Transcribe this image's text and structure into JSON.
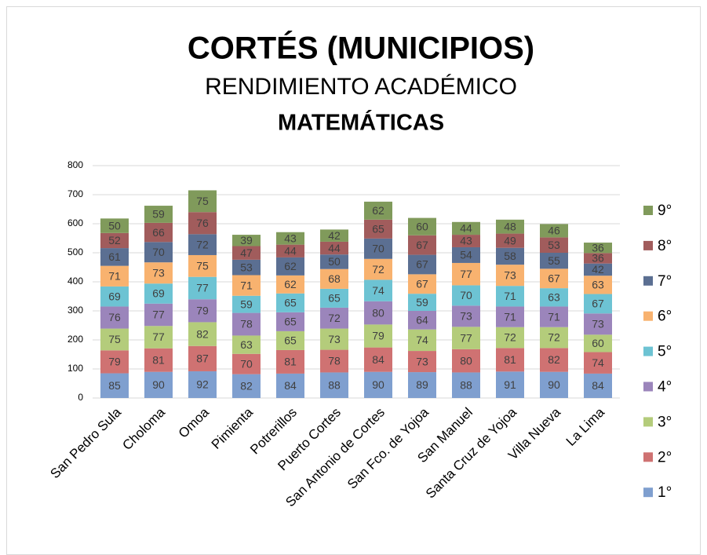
{
  "chart_data": {
    "type": "stacked_bar",
    "title": "CORTÉS (MUNICIPIOS)",
    "subtitle": "RENDIMIENTO ACADÉMICO",
    "topic": "MATEMÁTICAS",
    "categories": [
      "San Pedro Sula",
      "Choloma",
      "Omoa",
      "Pimienta",
      "Potrerillos",
      "Puerto Cortes",
      "San Antonio de Cortes",
      "San Fco. de Yojoa",
      "San Manuel",
      "Santa Cruz de Yojoa",
      "Villa Nueva",
      "La Lima"
    ],
    "series": [
      {
        "name": "1°",
        "color": "#7f9fcf",
        "values": [
          85,
          90,
          92,
          82,
          84,
          88,
          90,
          89,
          88,
          91,
          90,
          84
        ]
      },
      {
        "name": "2°",
        "color": "#cf7272",
        "values": [
          79,
          81,
          87,
          70,
          81,
          78,
          84,
          73,
          80,
          81,
          82,
          74
        ]
      },
      {
        "name": "3°",
        "color": "#b4cc7b",
        "values": [
          75,
          77,
          82,
          63,
          65,
          73,
          79,
          74,
          77,
          72,
          72,
          60
        ]
      },
      {
        "name": "4°",
        "color": "#9b85bb",
        "values": [
          76,
          77,
          79,
          78,
          65,
          72,
          80,
          64,
          73,
          71,
          71,
          73
        ]
      },
      {
        "name": "5°",
        "color": "#6dc3d3",
        "values": [
          69,
          69,
          77,
          59,
          65,
          65,
          74,
          59,
          70,
          71,
          63,
          67
        ]
      },
      {
        "name": "6°",
        "color": "#f8b26f",
        "values": [
          71,
          73,
          75,
          71,
          62,
          68,
          72,
          67,
          77,
          73,
          67,
          63
        ]
      },
      {
        "name": "7°",
        "color": "#5b6f92",
        "values": [
          61,
          70,
          72,
          53,
          62,
          50,
          70,
          67,
          54,
          58,
          55,
          42
        ]
      },
      {
        "name": "8°",
        "color": "#a15c5c",
        "values": [
          52,
          66,
          76,
          47,
          44,
          44,
          65,
          67,
          43,
          49,
          53,
          36
        ]
      },
      {
        "name": "9°",
        "color": "#809a5b",
        "values": [
          50,
          59,
          75,
          39,
          43,
          42,
          62,
          60,
          44,
          48,
          46,
          36
        ]
      }
    ],
    "ylim": [
      0,
      800
    ],
    "yticks": [
      0,
      100,
      200,
      300,
      400,
      500,
      600,
      700,
      800
    ],
    "grid": true,
    "legend": "right"
  }
}
